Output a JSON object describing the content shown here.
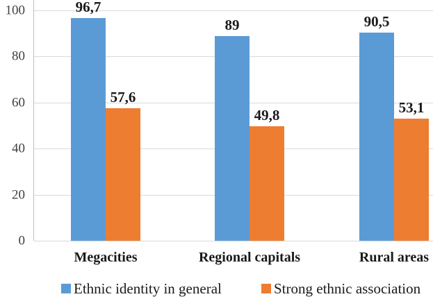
{
  "chart_data": {
    "type": "bar",
    "title": "",
    "xlabel": "",
    "ylabel": "",
    "categories": [
      "Megacities",
      "Regional capitals",
      "Rural areas"
    ],
    "series": [
      {
        "name": "Ethnic identity in general",
        "color": "#5B9BD5",
        "values": [
          96.7,
          89,
          90.5
        ],
        "value_labels": [
          "96,7",
          "89",
          "90,5"
        ]
      },
      {
        "name": "Strong ethnic association",
        "color": "#ED7D31",
        "values": [
          57.6,
          49.8,
          53.1
        ],
        "value_labels": [
          "57,6",
          "49,8",
          "53,1"
        ]
      }
    ],
    "y_ticks": [
      0,
      20,
      40,
      60,
      80,
      100
    ],
    "y_tick_labels": [
      "0",
      "20",
      "40",
      "60",
      "80",
      "100"
    ],
    "ylim": [
      0,
      100
    ],
    "grid": true,
    "legend_position": "bottom",
    "decimal_separator": ","
  },
  "colors": {
    "series_blue": "#5B9BD5",
    "series_orange": "#ED7D31",
    "gridline": "#D9D9D9",
    "axis_line": "#BFBFBF",
    "tick_text": "#404040",
    "label_text": "#1A1A1A",
    "background": "#FFFFFF"
  }
}
